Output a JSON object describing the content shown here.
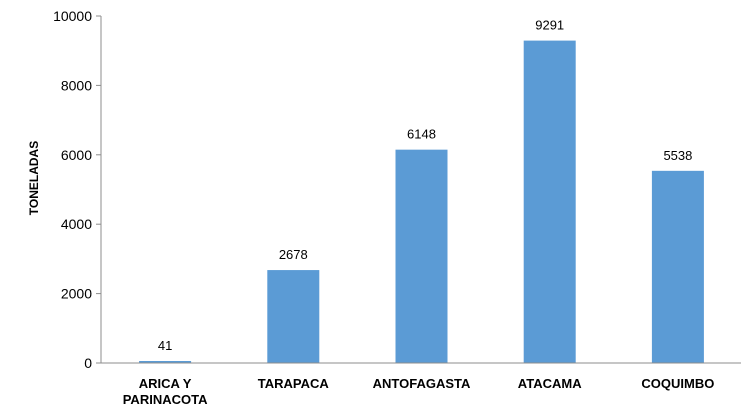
{
  "chart_data": {
    "type": "bar",
    "title": "",
    "xlabel": "",
    "ylabel": "TONELADAS",
    "categories": [
      [
        "ARICA Y",
        "PARINACOTA"
      ],
      [
        "TARAPACA"
      ],
      [
        "ANTOFAGASTA"
      ],
      [
        "ATACAMA"
      ],
      [
        "COQUIMBO"
      ]
    ],
    "values": [
      41,
      2678,
      6148,
      9291,
      5538
    ],
    "data_labels": [
      "41",
      "2678",
      "6148",
      "9291",
      "5538"
    ],
    "ylim": [
      0,
      10000
    ],
    "yticks": [
      0,
      2000,
      4000,
      6000,
      8000,
      10000
    ],
    "ytick_labels": [
      "0",
      "2000",
      "4000",
      "6000",
      "8000",
      "10000"
    ],
    "grid": false,
    "legend": "none",
    "bar_color": "#5b9bd5",
    "axis_color": "#8c8c8c"
  }
}
